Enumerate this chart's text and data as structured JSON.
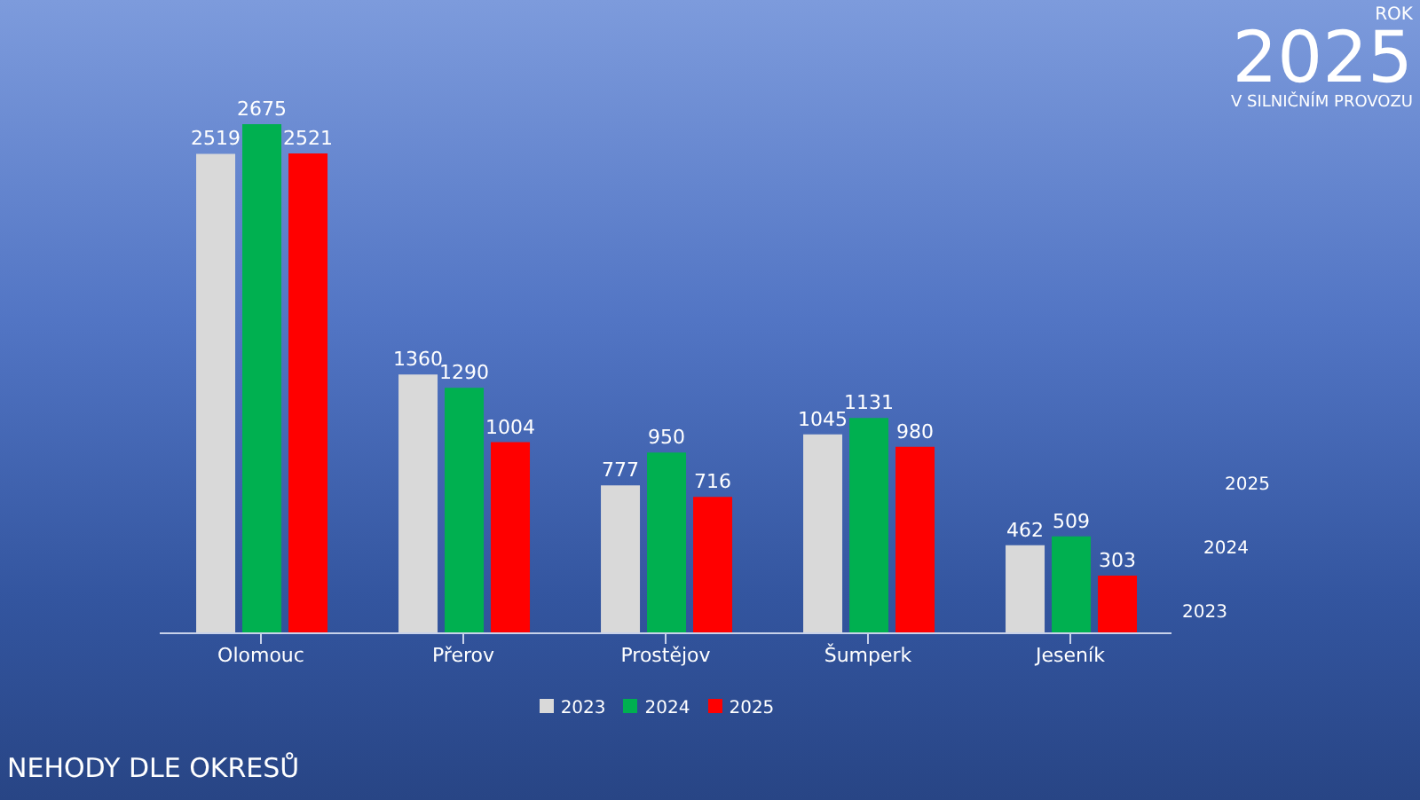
{
  "chart_data": {
    "type": "bar",
    "title": "NEHODY DLE OKRESŮ",
    "annotations": [
      "ROK",
      "2025",
      "V SILNIČNÍM PROVOZU"
    ],
    "categories": [
      "Olomouc",
      "Přerov",
      "Prostějov",
      "Šumperk",
      "Jeseník"
    ],
    "series": [
      {
        "name": "2023",
        "color": "#d9d9d9",
        "values": [
          2519,
          1360,
          777,
          1045,
          462
        ]
      },
      {
        "name": "2024",
        "color": "#00b050",
        "values": [
          2675,
          1290,
          950,
          1131,
          509
        ]
      },
      {
        "name": "2025",
        "color": "#ff0000",
        "values": [
          2521,
          1004,
          716,
          980,
          303
        ]
      }
    ],
    "data_labels": true,
    "legend": "bottom"
  }
}
